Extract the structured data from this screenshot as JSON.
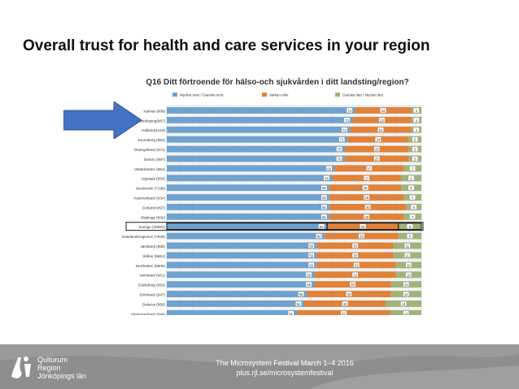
{
  "slide": {
    "title": "Overall trust for health and care services in your region"
  },
  "footer": {
    "line1": "The Microsystem Festival March 1–4 2016",
    "line2": "plus.rjl.se/microsystemfestival",
    "logo_text_1": "Qulturum",
    "logo_text_2": "Region",
    "logo_text_3": "Jönköpings län"
  },
  "colors": {
    "positive": "#6fa2cf",
    "neutral": "#e0823a",
    "negative": "#9fb37a",
    "arrow": "#4472c4",
    "footer": "#8f8f8f"
  },
  "chart_data": {
    "type": "bar",
    "orientation": "horizontal-stacked",
    "title": "Q16 Ditt förtroende för hälso-och sjukvården i ditt landsting/region?",
    "legend": [
      "Mycket stort / Ganska stort",
      "Varken eller",
      "Ganska litet / Mycket litet"
    ],
    "legend_position": "top",
    "xlim": [
      0,
      100
    ],
    "x_ticks": [
      0,
      5,
      10,
      15,
      20,
      25,
      30,
      35,
      40,
      45,
      50,
      55,
      60,
      65,
      70,
      75,
      80,
      85,
      90,
      95,
      100
    ],
    "x_unit": "%",
    "grid": true,
    "highlight_category": "Sverige (29081)",
    "categories": [
      "Kalmar (989)",
      "Jönköping(987)",
      "Halland(1419)",
      "Kronoberg (952)",
      "Östergötland (971)",
      "Örebro (987)",
      "Västerbotten (954)",
      "Uppsala (954)",
      "Stockholm (7199)",
      "Västmanland (934)",
      "Gotland (497)",
      "Blekinge (959)",
      "Sverige (29081)",
      "Västra Götalandsregionen (7849)",
      "Jämtland (959)",
      "Skåne (5661)",
      "Norrbotten (5900)",
      "Värmland (961)",
      "Gävleborg (954)",
      "Sörmland (947)",
      "Dalarna (958)",
      "Västernorrland (944)"
    ],
    "series": [
      {
        "name": "Mycket stort / Ganska stort",
        "values": [
          74,
          73,
          72,
          71,
          70,
          70,
          66,
          65,
          64,
          64,
          64,
          64,
          63,
          62,
          59,
          59,
          59,
          58,
          58,
          55,
          54,
          51
        ]
      },
      {
        "name": "Varken eller",
        "values": [
          22,
          23,
          24,
          24,
          25,
          25,
          27,
          27,
          28,
          29,
          30,
          29,
          28,
          29,
          30,
          30,
          31,
          32,
          30,
          33,
          32,
          37
        ]
      },
      {
        "name": "Ganska litet / Mycket litet",
        "values": [
          4,
          4,
          4,
          5,
          5,
          5,
          7,
          8,
          8,
          7,
          6,
          7,
          9,
          9,
          11,
          11,
          10,
          10,
          12,
          12,
          14,
          12
        ]
      }
    ]
  }
}
